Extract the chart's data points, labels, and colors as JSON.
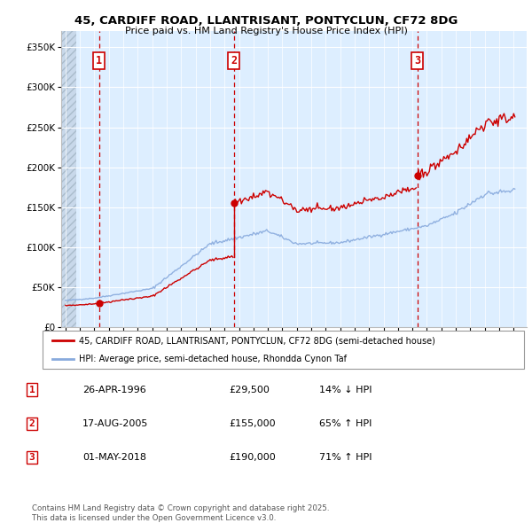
{
  "title1": "45, CARDIFF ROAD, LLANTRISANT, PONTYCLUN, CF72 8DG",
  "title2": "Price paid vs. HM Land Registry's House Price Index (HPI)",
  "sale_dates_num": [
    1996.32,
    2005.63,
    2018.33
  ],
  "sale_prices": [
    29500,
    155000,
    190000
  ],
  "sale_labels": [
    "1",
    "2",
    "3"
  ],
  "sale_color": "#cc0000",
  "hpi_color": "#88aadd",
  "background_plot": "#ddeeff",
  "grid_color": "#ffffff",
  "legend_line1": "45, CARDIFF ROAD, LLANTRISANT, PONTYCLUN, CF72 8DG (semi-detached house)",
  "legend_line2": "HPI: Average price, semi-detached house, Rhondda Cynon Taf",
  "table_entries": [
    {
      "num": "1",
      "date": "26-APR-1996",
      "price": "£29,500",
      "change": "14% ↓ HPI"
    },
    {
      "num": "2",
      "date": "17-AUG-2005",
      "price": "£155,000",
      "change": "65% ↑ HPI"
    },
    {
      "num": "3",
      "date": "01-MAY-2018",
      "price": "£190,000",
      "change": "71% ↑ HPI"
    }
  ],
  "footnote": "Contains HM Land Registry data © Crown copyright and database right 2025.\nThis data is licensed under the Open Government Licence v3.0.",
  "ylim_max": 370000,
  "xlim_start": 1993.7,
  "xlim_end": 2025.9
}
